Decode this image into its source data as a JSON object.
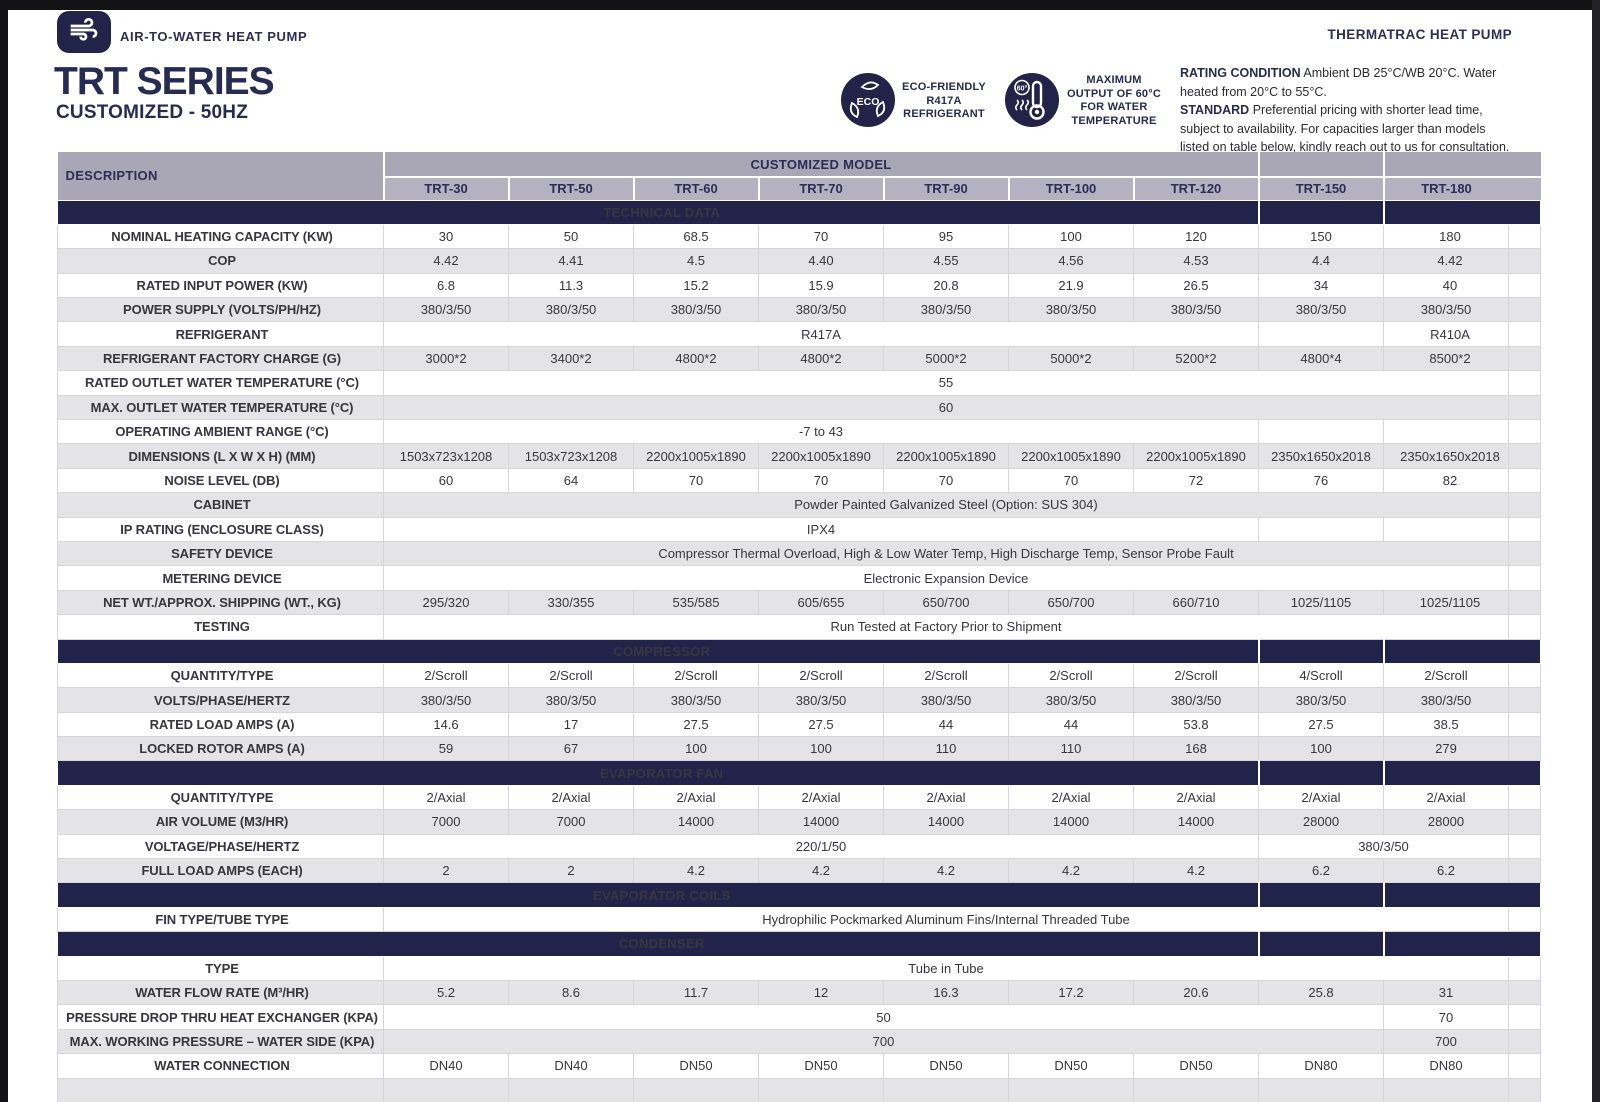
{
  "page": {
    "brand_label": "AIR-TO-WATER HEAT PUMP",
    "brand_right": "THERMATRAC HEAT PUMP",
    "title": "TRT SERIES",
    "subtitle": "CUSTOMIZED - 50HZ",
    "badge_eco_text": "ECO-FRIENDLY\nR417A\nREFRIGERANT",
    "badge_max_text": "MAXIMUM\nOUTPUT OF 60°C\nFOR WATER\nTEMPERATURE",
    "rating_label": "RATING CONDITION",
    "rating_text": " Ambient DB 25°C/WB 20°C. Water heated from 20°C to 55°C.",
    "standard_label": "STANDARD",
    "standard_text": " Preferential pricing with shorter lead time, subject to availability. For capacities larger than models listed on table below, kindly reach out to us for consultation."
  },
  "colors": {
    "navy": "#22234a",
    "header_gray": "#a9a6b6",
    "model_gray": "#b4b1c1",
    "row_gray": "#e4e4e6"
  },
  "table": {
    "description_header": "DESCRIPTION",
    "group_header": "CUSTOMIZED MODEL",
    "models": [
      "TRT-30",
      "TRT-50",
      "TRT-60",
      "TRT-70",
      "TRT-90",
      "TRT-100",
      "TRT-120",
      "TRT-150",
      "TRT-180"
    ],
    "partial_row": true,
    "sections": [
      {
        "title": "TECHNICAL DATA",
        "rows": [
          {
            "l": "NOMINAL HEATING CAPACITY (KW)",
            "c": [
              {
                "t": "30"
              },
              {
                "t": "50"
              },
              {
                "t": "68.5"
              },
              {
                "t": "70"
              },
              {
                "t": "95"
              },
              {
                "t": "100"
              },
              {
                "t": "120"
              },
              {
                "t": "150"
              },
              {
                "t": "180",
                "a": "l"
              }
            ]
          },
          {
            "l": "COP",
            "c": [
              {
                "t": "4.42"
              },
              {
                "t": "4.41"
              },
              {
                "t": "4.5"
              },
              {
                "t": "4.40"
              },
              {
                "t": "4.55"
              },
              {
                "t": "4.56"
              },
              {
                "t": "4.53"
              },
              {
                "t": "4.4"
              },
              {
                "t": "4.42",
                "a": "l"
              }
            ]
          },
          {
            "l": "RATED INPUT POWER (KW)",
            "c": [
              {
                "t": "6.8"
              },
              {
                "t": "11.3"
              },
              {
                "t": "15.2"
              },
              {
                "t": "15.9"
              },
              {
                "t": "20.8"
              },
              {
                "t": "21.9"
              },
              {
                "t": "26.5"
              },
              {
                "t": "34"
              },
              {
                "t": "40",
                "a": "l"
              }
            ]
          },
          {
            "l": "POWER SUPPLY (VOLTS/PH/HZ)",
            "c": [
              {
                "t": "380/3/50"
              },
              {
                "t": "380/3/50"
              },
              {
                "t": "380/3/50"
              },
              {
                "t": "380/3/50"
              },
              {
                "t": "380/3/50"
              },
              {
                "t": "380/3/50"
              },
              {
                "t": "380/3/50"
              },
              {
                "t": "380/3/50"
              },
              {
                "t": "380/3/50"
              }
            ]
          },
          {
            "l": "REFRIGERANT",
            "c": [
              {
                "t": "R417A",
                "s": 7
              },
              {
                "t": ""
              },
              {
                "t": "R410A",
                "a": "l"
              }
            ]
          },
          {
            "l": "REFRIGERANT FACTORY CHARGE (G)",
            "c": [
              {
                "t": "3000*2"
              },
              {
                "t": "3400*2"
              },
              {
                "t": "4800*2"
              },
              {
                "t": "4800*2"
              },
              {
                "t": "5000*2"
              },
              {
                "t": "5000*2"
              },
              {
                "t": "5200*2"
              },
              {
                "t": "4800*4"
              },
              {
                "t": "8500*2",
                "a": "l"
              }
            ]
          },
          {
            "l": "RATED OUTLET WATER TEMPERATURE (°C)",
            "c": [
              {
                "t": "55",
                "s": 9
              }
            ]
          },
          {
            "l": "MAX. OUTLET WATER TEMPERATURE (°C)",
            "c": [
              {
                "t": "60",
                "s": 9
              }
            ]
          },
          {
            "l": "OPERATING AMBIENT RANGE (°C)",
            "c": [
              {
                "t": "-7 to 43",
                "s": 7
              },
              {
                "t": ""
              },
              {
                "t": ""
              }
            ]
          },
          {
            "l": "DIMENSIONS (L X W X H) (MM)",
            "c": [
              {
                "t": "1503x723x1208"
              },
              {
                "t": "1503x723x1208"
              },
              {
                "t": "2200x1005x1890"
              },
              {
                "t": "2200x1005x1890"
              },
              {
                "t": "2200x1005x1890"
              },
              {
                "t": "2200x1005x1890"
              },
              {
                "t": "2200x1005x1890"
              },
              {
                "t": "2350x1650x2018"
              },
              {
                "t": "2350x1650x2018",
                "a": "l"
              }
            ]
          },
          {
            "l": "NOISE LEVEL (DB)",
            "c": [
              {
                "t": "60"
              },
              {
                "t": "64"
              },
              {
                "t": "70"
              },
              {
                "t": "70"
              },
              {
                "t": "70"
              },
              {
                "t": "70"
              },
              {
                "t": "72"
              },
              {
                "t": "76"
              },
              {
                "t": "82",
                "a": "l"
              }
            ]
          },
          {
            "l": "CABINET",
            "c": [
              {
                "t": "Powder Painted Galvanized Steel (Option: SUS 304)",
                "s": 9
              }
            ]
          },
          {
            "l": "IP RATING (ENCLOSURE CLASS)",
            "c": [
              {
                "t": "IPX4",
                "s": 7
              },
              {
                "t": ""
              },
              {
                "t": ""
              }
            ]
          },
          {
            "l": "SAFETY DEVICE",
            "c": [
              {
                "t": "Compressor Thermal Overload, High & Low Water Temp, High Discharge Temp, Sensor Probe Fault",
                "s": 9
              }
            ]
          },
          {
            "l": "METERING DEVICE",
            "c": [
              {
                "t": "Electronic Expansion Device",
                "s": 9
              }
            ]
          },
          {
            "l": "NET WT./APPROX. SHIPPING (WT., KG)",
            "c": [
              {
                "t": "295/320"
              },
              {
                "t": "330/355"
              },
              {
                "t": "535/585"
              },
              {
                "t": "605/655"
              },
              {
                "t": "650/700"
              },
              {
                "t": "650/700"
              },
              {
                "t": "660/710"
              },
              {
                "t": "1025/1105"
              },
              {
                "t": "1025/1105",
                "a": "l"
              }
            ]
          },
          {
            "l": "TESTING",
            "c": [
              {
                "t": "Run Tested at Factory Prior to Shipment",
                "s": 9
              }
            ]
          }
        ]
      },
      {
        "title": "COMPRESSOR",
        "rows": [
          {
            "l": "QUANTITY/TYPE",
            "c": [
              {
                "t": "2/Scroll"
              },
              {
                "t": "2/Scroll"
              },
              {
                "t": "2/Scroll"
              },
              {
                "t": "2/Scroll"
              },
              {
                "t": "2/Scroll"
              },
              {
                "t": "2/Scroll"
              },
              {
                "t": "2/Scroll"
              },
              {
                "t": "4/Scroll"
              },
              {
                "t": "2/Scroll"
              }
            ]
          },
          {
            "l": "VOLTS/PHASE/HERTZ",
            "c": [
              {
                "t": "380/3/50"
              },
              {
                "t": "380/3/50"
              },
              {
                "t": "380/3/50"
              },
              {
                "t": "380/3/50"
              },
              {
                "t": "380/3/50"
              },
              {
                "t": "380/3/50"
              },
              {
                "t": "380/3/50"
              },
              {
                "t": "380/3/50"
              },
              {
                "t": "380/3/50"
              }
            ]
          },
          {
            "l": "RATED LOAD AMPS (A)",
            "c": [
              {
                "t": "14.6"
              },
              {
                "t": "17"
              },
              {
                "t": "27.5"
              },
              {
                "t": "27.5"
              },
              {
                "t": "44"
              },
              {
                "t": "44"
              },
              {
                "t": "53.8"
              },
              {
                "t": "27.5"
              },
              {
                "t": "38.5"
              }
            ]
          },
          {
            "l": "LOCKED ROTOR AMPS (A)",
            "c": [
              {
                "t": "59"
              },
              {
                "t": "67"
              },
              {
                "t": "100"
              },
              {
                "t": "100"
              },
              {
                "t": "110"
              },
              {
                "t": "110"
              },
              {
                "t": "168"
              },
              {
                "t": "100"
              },
              {
                "t": "279"
              }
            ]
          }
        ]
      },
      {
        "title": "EVAPORATOR FAN",
        "rows": [
          {
            "l": "QUANTITY/TYPE",
            "c": [
              {
                "t": "2/Axial"
              },
              {
                "t": "2/Axial"
              },
              {
                "t": "2/Axial"
              },
              {
                "t": "2/Axial"
              },
              {
                "t": "2/Axial"
              },
              {
                "t": "2/Axial"
              },
              {
                "t": "2/Axial"
              },
              {
                "t": "2/Axial"
              },
              {
                "t": "2/Axial"
              }
            ]
          },
          {
            "l": "AIR VOLUME (M3/HR)",
            "c": [
              {
                "t": "7000"
              },
              {
                "t": "7000"
              },
              {
                "t": "14000"
              },
              {
                "t": "14000"
              },
              {
                "t": "14000"
              },
              {
                "t": "14000"
              },
              {
                "t": "14000"
              },
              {
                "t": "28000"
              },
              {
                "t": "28000"
              }
            ]
          },
          {
            "l": "VOLTAGE/PHASE/HERTZ",
            "c": [
              {
                "t": "220/1/50",
                "s": 7
              },
              {
                "t": "380/3/50",
                "s": 2
              }
            ]
          },
          {
            "l": "FULL LOAD AMPS (EACH)",
            "c": [
              {
                "t": "2"
              },
              {
                "t": "2"
              },
              {
                "t": "4.2"
              },
              {
                "t": "4.2"
              },
              {
                "t": "4.2"
              },
              {
                "t": "4.2"
              },
              {
                "t": "4.2"
              },
              {
                "t": "6.2"
              },
              {
                "t": "6.2"
              }
            ]
          }
        ]
      },
      {
        "title": "EVAPORATOR COILS",
        "rows": [
          {
            "l": "FIN TYPE/TUBE TYPE",
            "c": [
              {
                "t": "Hydrophilic Pockmarked Aluminum Fins/Internal Threaded Tube",
                "s": 9
              }
            ]
          }
        ]
      },
      {
        "title": "CONDENSER",
        "rows": [
          {
            "l": "TYPE",
            "c": [
              {
                "t": "Tube in Tube",
                "s": 9
              }
            ]
          },
          {
            "l": "WATER FLOW RATE (M³/HR)",
            "c": [
              {
                "t": "5.2"
              },
              {
                "t": "8.6"
              },
              {
                "t": "11.7"
              },
              {
                "t": "12"
              },
              {
                "t": "16.3"
              },
              {
                "t": "17.2"
              },
              {
                "t": "20.6"
              },
              {
                "t": "25.8"
              },
              {
                "t": "31"
              }
            ]
          },
          {
            "l": "PRESSURE DROP THRU HEAT EXCHANGER (KPA)",
            "c": [
              {
                "t": "50",
                "s": 8
              },
              {
                "t": "70"
              }
            ]
          },
          {
            "l": "MAX. WORKING PRESSURE – WATER SIDE (KPA)",
            "c": [
              {
                "t": "700",
                "s": 8
              },
              {
                "t": "700"
              }
            ]
          },
          {
            "l": "WATER CONNECTION",
            "c": [
              {
                "t": "DN40"
              },
              {
                "t": "DN40"
              },
              {
                "t": "DN50"
              },
              {
                "t": "DN50"
              },
              {
                "t": "DN50"
              },
              {
                "t": "DN50"
              },
              {
                "t": "DN50"
              },
              {
                "t": "DN80"
              },
              {
                "t": "DN80"
              }
            ]
          }
        ]
      }
    ]
  }
}
